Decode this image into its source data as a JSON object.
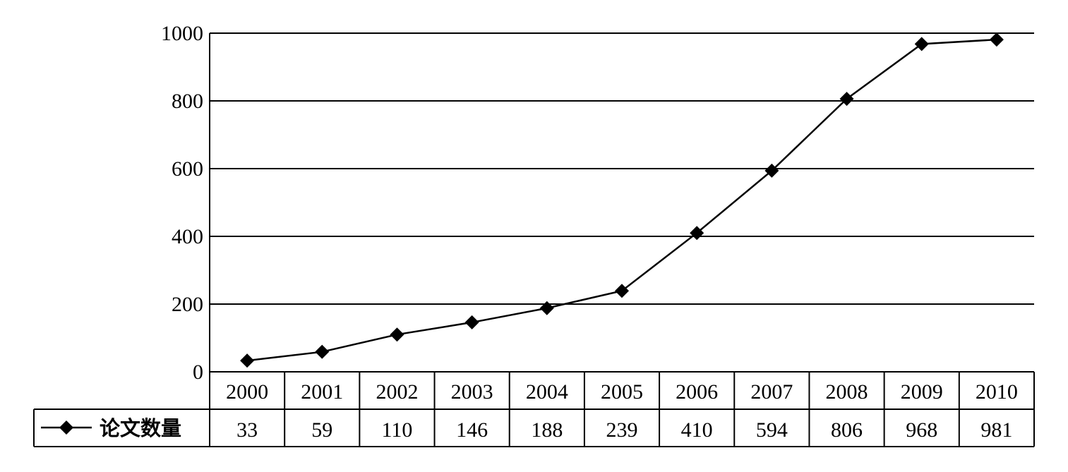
{
  "chart_data": {
    "type": "line",
    "categories": [
      "2000",
      "2001",
      "2002",
      "2003",
      "2004",
      "2005",
      "2006",
      "2007",
      "2008",
      "2009",
      "2010"
    ],
    "series": [
      {
        "name": "论文数量",
        "values": [
          33,
          59,
          110,
          146,
          188,
          239,
          410,
          594,
          806,
          968,
          981
        ]
      }
    ],
    "y_ticks": [
      "0",
      "200",
      "400",
      "600",
      "800",
      "1000"
    ],
    "ylim": [
      0,
      1000
    ],
    "grid": true,
    "marker": "diamond",
    "data_table": true,
    "line_color": "#000000"
  }
}
